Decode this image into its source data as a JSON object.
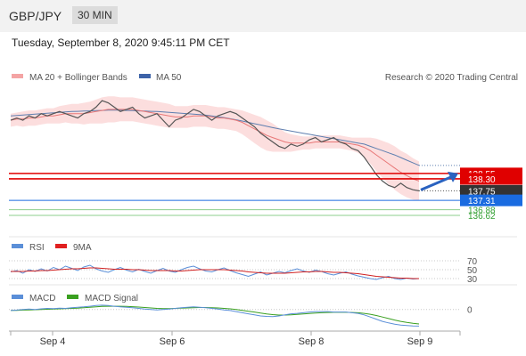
{
  "header": {
    "pair": "GBP/JPY",
    "timeframe": "30 MIN"
  },
  "datetime": "Tuesday, September 8, 2020 9:45:11 PM CET",
  "legend": {
    "ma20": "MA 20 + Bollinger Bands",
    "ma50": "MA 50",
    "credit": "Research © 2020 Trading Central",
    "rsi": "RSI",
    "rsi_ma": "9MA",
    "macd": "MACD",
    "macd_signal": "MACD Signal"
  },
  "colors": {
    "price": "#555555",
    "ma20": "#e87777",
    "ma50": "#5e7fb0",
    "band": "#fbd3d3",
    "resistance": "#e00000",
    "pivot": "#1a6be0",
    "support": "#33a033",
    "current": "#333333",
    "arrow": "#2a62c0"
  },
  "chart_data": [
    {
      "type": "line",
      "name": "price",
      "x_ticks": [
        "Sep 4",
        "Sep 6",
        "Sep 8",
        "Sep 9"
      ],
      "ylim": [
        135.8,
        142.6
      ],
      "close": [
        141.0,
        141.1,
        141.0,
        141.2,
        141.1,
        141.3,
        141.2,
        141.3,
        141.4,
        141.3,
        141.2,
        141.1,
        141.3,
        141.4,
        141.6,
        141.9,
        141.8,
        141.6,
        141.4,
        141.5,
        141.6,
        141.3,
        141.1,
        141.2,
        141.3,
        141.0,
        140.7,
        141.0,
        141.1,
        141.3,
        141.5,
        141.4,
        141.2,
        141.0,
        141.2,
        141.3,
        141.4,
        141.3,
        141.1,
        140.9,
        140.7,
        140.4,
        140.2,
        140.0,
        139.8,
        139.7,
        139.9,
        139.8,
        139.9,
        140.1,
        140.2,
        140.0,
        140.1,
        140.2,
        140.0,
        139.9,
        139.7,
        139.6,
        139.3,
        138.9,
        138.5,
        138.2,
        138.0,
        137.9,
        138.1,
        137.9,
        137.8,
        137.75
      ],
      "ma20": [
        141.0,
        141.05,
        141.05,
        141.1,
        141.1,
        141.15,
        141.2,
        141.2,
        141.25,
        141.3,
        141.3,
        141.3,
        141.3,
        141.35,
        141.4,
        141.45,
        141.5,
        141.5,
        141.5,
        141.5,
        141.5,
        141.45,
        141.4,
        141.35,
        141.3,
        141.25,
        141.2,
        141.15,
        141.15,
        141.15,
        141.2,
        141.2,
        141.2,
        141.15,
        141.1,
        141.1,
        141.05,
        141.0,
        140.9,
        140.75,
        140.6,
        140.45,
        140.3,
        140.2,
        140.1,
        140.0,
        139.95,
        139.95,
        139.95,
        139.95,
        140.0,
        140.0,
        140.0,
        140.0,
        140.0,
        139.95,
        139.9,
        139.85,
        139.75,
        139.6,
        139.4,
        139.2,
        139.0,
        138.8,
        138.6,
        138.45,
        138.3,
        138.2
      ],
      "ma50": [
        141.2,
        141.22,
        141.24,
        141.26,
        141.28,
        141.3,
        141.32,
        141.34,
        141.36,
        141.38,
        141.4,
        141.41,
        141.42,
        141.43,
        141.44,
        141.45,
        141.46,
        141.46,
        141.46,
        141.45,
        141.44,
        141.43,
        141.42,
        141.41,
        141.4,
        141.38,
        141.36,
        141.34,
        141.32,
        141.3,
        141.28,
        141.26,
        141.23,
        141.2,
        141.16,
        141.12,
        141.07,
        141.02,
        140.96,
        140.9,
        140.84,
        140.78,
        140.72,
        140.66,
        140.6,
        140.55,
        140.5,
        140.45,
        140.4,
        140.35,
        140.3,
        140.25,
        140.2,
        140.15,
        140.1,
        140.05,
        140.0,
        139.95,
        139.9,
        139.8,
        139.7,
        139.6,
        139.5,
        139.4,
        139.28,
        139.16,
        139.04,
        138.92
      ],
      "band_width": [
        0.3,
        0.3,
        0.35,
        0.35,
        0.35,
        0.35,
        0.35,
        0.35,
        0.4,
        0.4,
        0.45,
        0.45,
        0.5,
        0.5,
        0.55,
        0.6,
        0.6,
        0.6,
        0.55,
        0.55,
        0.55,
        0.55,
        0.55,
        0.55,
        0.55,
        0.55,
        0.55,
        0.5,
        0.5,
        0.5,
        0.5,
        0.5,
        0.5,
        0.5,
        0.5,
        0.5,
        0.5,
        0.5,
        0.55,
        0.6,
        0.65,
        0.7,
        0.7,
        0.65,
        0.55,
        0.45,
        0.4,
        0.35,
        0.3,
        0.3,
        0.3,
        0.3,
        0.3,
        0.3,
        0.3,
        0.3,
        0.3,
        0.35,
        0.45,
        0.6,
        0.75,
        0.85,
        0.95,
        1.0,
        1.0,
        1.0,
        0.95,
        0.9
      ],
      "levels": [
        {
          "label": "138.55",
          "value": 138.55,
          "kind": "resistance"
        },
        {
          "label": "138.30",
          "value": 138.3,
          "kind": "resistance"
        },
        {
          "label": "137.75",
          "value": 137.75,
          "kind": "current"
        },
        {
          "label": "137.31",
          "value": 137.31,
          "kind": "pivot"
        },
        {
          "label": "136.88",
          "value": 136.88,
          "kind": "support"
        },
        {
          "label": "136.62",
          "value": 136.62,
          "kind": "support"
        }
      ],
      "forecast_target": 138.55
    },
    {
      "type": "line",
      "name": "RSI",
      "ylim": [
        20,
        80
      ],
      "levels": [
        {
          "label": "70",
          "value": 70
        },
        {
          "label": "50",
          "value": 50
        },
        {
          "label": "30",
          "value": 30
        }
      ],
      "rsi": [
        45,
        48,
        42,
        50,
        46,
        52,
        47,
        55,
        50,
        58,
        53,
        48,
        56,
        60,
        52,
        47,
        44,
        50,
        55,
        49,
        45,
        51,
        46,
        42,
        48,
        53,
        47,
        44,
        50,
        55,
        58,
        52,
        47,
        45,
        50,
        54,
        48,
        43,
        39,
        35,
        40,
        45,
        38,
        42,
        46,
        43,
        48,
        52,
        47,
        44,
        49,
        46,
        41,
        38,
        42,
        45,
        40,
        36,
        33,
        30,
        28,
        32,
        35,
        30,
        28,
        31,
        29,
        30
      ],
      "ma9": [
        46,
        46,
        46,
        47,
        47,
        48,
        48,
        49,
        50,
        51,
        52,
        52,
        53,
        54,
        54,
        53,
        52,
        51,
        51,
        51,
        50,
        50,
        49,
        48,
        48,
        48,
        48,
        47,
        47,
        48,
        49,
        50,
        50,
        50,
        50,
        50,
        49,
        48,
        47,
        45,
        44,
        43,
        42,
        42,
        42,
        42,
        43,
        44,
        45,
        45,
        46,
        46,
        45,
        44,
        44,
        43,
        42,
        41,
        39,
        37,
        35,
        34,
        33,
        32,
        31,
        31,
        30,
        30
      ]
    },
    {
      "type": "line",
      "name": "MACD",
      "ylim": [
        -1.0,
        0.4
      ],
      "levels": [
        {
          "label": "0",
          "value": 0
        }
      ],
      "macd": [
        -0.05,
        -0.03,
        0.0,
        0.02,
        0.0,
        0.03,
        0.05,
        0.04,
        0.06,
        0.05,
        0.08,
        0.1,
        0.12,
        0.15,
        0.18,
        0.2,
        0.18,
        0.15,
        0.12,
        0.1,
        0.08,
        0.05,
        0.02,
        0.0,
        -0.02,
        0.0,
        0.02,
        0.05,
        0.08,
        0.1,
        0.12,
        0.1,
        0.08,
        0.05,
        0.02,
        -0.02,
        -0.05,
        -0.1,
        -0.15,
        -0.2,
        -0.25,
        -0.3,
        -0.32,
        -0.33,
        -0.3,
        -0.25,
        -0.2,
        -0.18,
        -0.15,
        -0.12,
        -0.1,
        -0.1,
        -0.1,
        -0.12,
        -0.12,
        -0.12,
        -0.15,
        -0.18,
        -0.25,
        -0.35,
        -0.45,
        -0.55,
        -0.62,
        -0.68,
        -0.72,
        -0.74,
        -0.76,
        -0.77
      ],
      "signal": [
        -0.04,
        -0.04,
        -0.03,
        -0.02,
        -0.01,
        0.0,
        0.01,
        0.02,
        0.03,
        0.04,
        0.05,
        0.06,
        0.08,
        0.1,
        0.12,
        0.14,
        0.15,
        0.15,
        0.15,
        0.14,
        0.13,
        0.11,
        0.09,
        0.07,
        0.05,
        0.04,
        0.04,
        0.05,
        0.06,
        0.07,
        0.08,
        0.09,
        0.09,
        0.08,
        0.07,
        0.05,
        0.03,
        0.0,
        -0.04,
        -0.08,
        -0.12,
        -0.17,
        -0.21,
        -0.24,
        -0.26,
        -0.26,
        -0.25,
        -0.23,
        -0.21,
        -0.19,
        -0.17,
        -0.15,
        -0.14,
        -0.13,
        -0.13,
        -0.13,
        -0.14,
        -0.15,
        -0.18,
        -0.22,
        -0.28,
        -0.35,
        -0.42,
        -0.49,
        -0.55,
        -0.6,
        -0.64,
        -0.67
      ]
    }
  ]
}
